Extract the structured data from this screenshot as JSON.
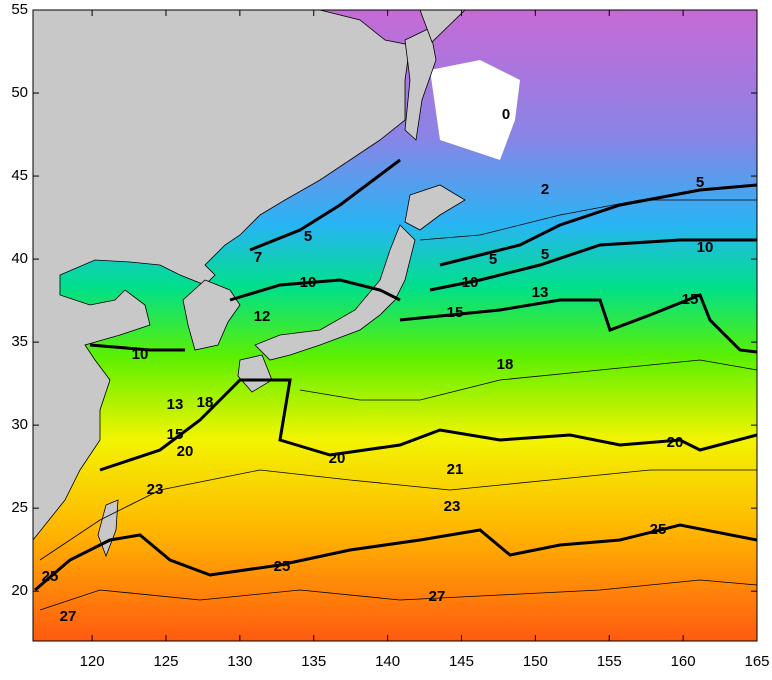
{
  "axes": {
    "xlim": [
      116,
      165
    ],
    "ylim": [
      17,
      55
    ],
    "xticks": [
      120,
      125,
      130,
      135,
      140,
      145,
      150,
      155,
      160,
      165
    ],
    "yticks": [
      20,
      25,
      30,
      35,
      40,
      45,
      50,
      55
    ]
  },
  "contour_labels": [
    0,
    2,
    5,
    5,
    5,
    5,
    7,
    10,
    10,
    10,
    10,
    13,
    15,
    15,
    12,
    13,
    18,
    18,
    15,
    20,
    20,
    20,
    21,
    23,
    23,
    25,
    25,
    25,
    27,
    27
  ]
}
